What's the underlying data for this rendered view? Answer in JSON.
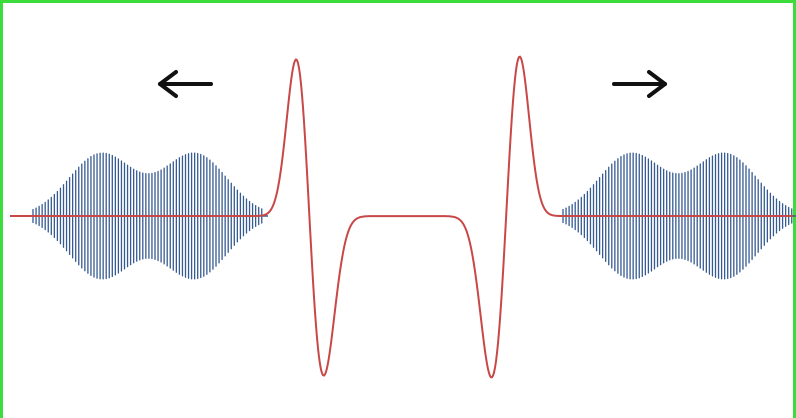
{
  "figure": {
    "arrows": {
      "left": "←",
      "right": "→"
    },
    "colors": {
      "frame": "#3ddc3d",
      "blue_wave": "#365a91",
      "red_wave": "#c84848",
      "arrow": "#111111"
    }
  }
}
